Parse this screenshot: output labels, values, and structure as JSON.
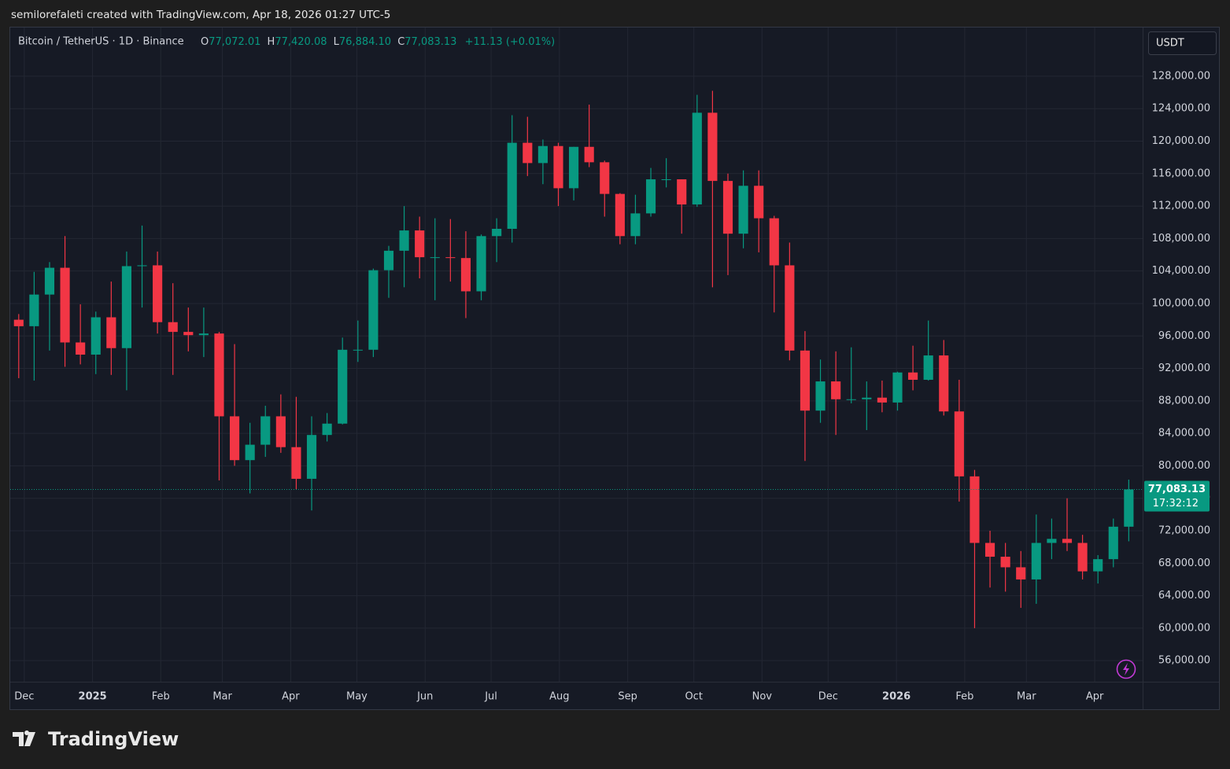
{
  "header": "semilorefaleti created with TradingView.com, Apr 18, 2026 01:27 UTC-5",
  "brand": "TradingView",
  "currency_button": "USDT",
  "chart_data": {
    "type": "candlestick",
    "symbol": "Bitcoin / TetherUS · 1D · Binance",
    "ohlc_legend": {
      "o": "O",
      "open": "77,072.01",
      "h": "H",
      "high": "77,420.08",
      "l": "L",
      "low": "76,884.10",
      "c": "C",
      "close": "77,083.13",
      "change": "+11.13 (+0.01%)"
    },
    "up_color": "#089981",
    "down_color": "#f23645",
    "open": [
      98000,
      97200,
      101100,
      104400,
      95200,
      93700,
      98300,
      94500,
      104600,
      104700,
      97700,
      96500,
      96100,
      96300,
      86100,
      80700,
      82600,
      86100,
      82300,
      78400,
      83800,
      85200,
      94300,
      94300,
      104100,
      106500,
      109000,
      105700,
      105700,
      105600,
      101500,
      108300,
      109200,
      119800,
      117300,
      119400,
      114200,
      119300,
      117400,
      113500,
      108300,
      111100,
      115300,
      115300,
      112200,
      123500,
      115100,
      108600,
      114500,
      110500,
      104700,
      94200,
      86800,
      90400,
      88200,
      88200,
      88400,
      87800,
      91500,
      90600,
      93600,
      86700,
      78700,
      70500,
      68800,
      67500,
      66000,
      70500,
      71000,
      70500,
      67000,
      68500,
      72500
    ],
    "high": [
      98700,
      103900,
      105100,
      108300,
      99900,
      99000,
      102700,
      106400,
      109600,
      106400,
      102500,
      99500,
      99500,
      96500,
      95000,
      85300,
      87400,
      88800,
      88500,
      86100,
      86500,
      95800,
      97900,
      104300,
      107100,
      112000,
      110700,
      110500,
      110400,
      108900,
      108500,
      110500,
      123200,
      123000,
      120200,
      119800,
      119300,
      124500,
      117600,
      113600,
      113400,
      116700,
      117900,
      115300,
      125700,
      126200,
      116000,
      116400,
      116400,
      110800,
      107500,
      96600,
      93100,
      94100,
      94600,
      90400,
      90500,
      91600,
      94800,
      97900,
      95500,
      90600,
      79500,
      72000,
      70500,
      69500,
      74000,
      73500,
      76000,
      71500,
      69000,
      73500,
      78300
    ],
    "low": [
      90800,
      90500,
      94200,
      92200,
      92500,
      91300,
      91200,
      89300,
      99500,
      96300,
      91200,
      94100,
      93400,
      78200,
      80000,
      76600,
      81100,
      81600,
      77100,
      74500,
      83000,
      85100,
      92800,
      93400,
      100700,
      102000,
      103100,
      100400,
      102700,
      98200,
      100400,
      105100,
      107500,
      115700,
      114700,
      112000,
      112700,
      116800,
      110700,
      107300,
      107300,
      110700,
      114300,
      108600,
      111900,
      102000,
      103500,
      106800,
      106300,
      98900,
      93000,
      80600,
      85300,
      83800,
      87700,
      84400,
      86600,
      86800,
      89300,
      90500,
      86200,
      75600,
      60000,
      65000,
      64500,
      62500,
      63000,
      68500,
      69500,
      66000,
      65500,
      67500,
      70700
    ],
    "close": [
      97200,
      101100,
      104400,
      95200,
      93700,
      98300,
      94500,
      104600,
      104700,
      97700,
      96500,
      96100,
      96300,
      86100,
      80700,
      82600,
      86100,
      82300,
      78400,
      83800,
      85200,
      94300,
      94300,
      104100,
      106500,
      109000,
      105700,
      105700,
      105600,
      101500,
      108300,
      109200,
      119800,
      117300,
      119400,
      114200,
      119300,
      117400,
      113500,
      108300,
      111100,
      115300,
      115300,
      112200,
      123500,
      115100,
      108600,
      114500,
      110500,
      104700,
      94200,
      86800,
      90400,
      88200,
      88200,
      88400,
      87800,
      91500,
      90600,
      93600,
      86700,
      78700,
      70500,
      68800,
      67500,
      66000,
      70500,
      71000,
      70500,
      67000,
      68500,
      72500,
      77083.13
    ],
    "last_price": {
      "value": 77083.13,
      "label": "77,083.13"
    },
    "countdown": "17:32:12",
    "xlim": [
      0,
      73.4
    ],
    "xticks": [
      {
        "value": 0.86,
        "label": "Dec"
      },
      {
        "value": 5.29,
        "label": "2025"
      },
      {
        "value": 9.71,
        "label": "Feb"
      },
      {
        "value": 13.71,
        "label": "Mar"
      },
      {
        "value": 18.14,
        "label": "Apr"
      },
      {
        "value": 22.43,
        "label": "May"
      },
      {
        "value": 26.86,
        "label": "Jun"
      },
      {
        "value": 31.14,
        "label": "Jul"
      },
      {
        "value": 35.57,
        "label": "Aug"
      },
      {
        "value": 40,
        "label": "Sep"
      },
      {
        "value": 44.29,
        "label": "Oct"
      },
      {
        "value": 48.71,
        "label": "Nov"
      },
      {
        "value": 53,
        "label": "Dec"
      },
      {
        "value": 57.43,
        "label": "2026"
      },
      {
        "value": 61.86,
        "label": "Feb"
      },
      {
        "value": 65.86,
        "label": "Mar"
      },
      {
        "value": 70.29,
        "label": "Apr"
      }
    ],
    "ylim": [
      53400,
      134000
    ],
    "yticks": [
      {
        "value": 56000,
        "label": "56,000.00"
      },
      {
        "value": 60000,
        "label": "60,000.00"
      },
      {
        "value": 64000,
        "label": "64,000.00"
      },
      {
        "value": 68000,
        "label": "68,000.00"
      },
      {
        "value": 72000,
        "label": "72,000.00"
      },
      {
        "value": 76000,
        "label": "76,000.00"
      },
      {
        "value": 80000,
        "label": "80,000.00"
      },
      {
        "value": 84000,
        "label": "84,000.00"
      },
      {
        "value": 88000,
        "label": "88,000.00"
      },
      {
        "value": 92000,
        "label": "92,000.00"
      },
      {
        "value": 96000,
        "label": "96,000.00"
      },
      {
        "value": 100000,
        "label": "100,000.00"
      },
      {
        "value": 104000,
        "label": "104,000.00"
      },
      {
        "value": 108000,
        "label": "108,000.00"
      },
      {
        "value": 112000,
        "label": "112,000.00"
      },
      {
        "value": 116000,
        "label": "116,000.00"
      },
      {
        "value": 120000,
        "label": "120,000.00"
      },
      {
        "value": 124000,
        "label": "124,000.00"
      },
      {
        "value": 128000,
        "label": "128,000.00"
      }
    ],
    "grid": true
  }
}
